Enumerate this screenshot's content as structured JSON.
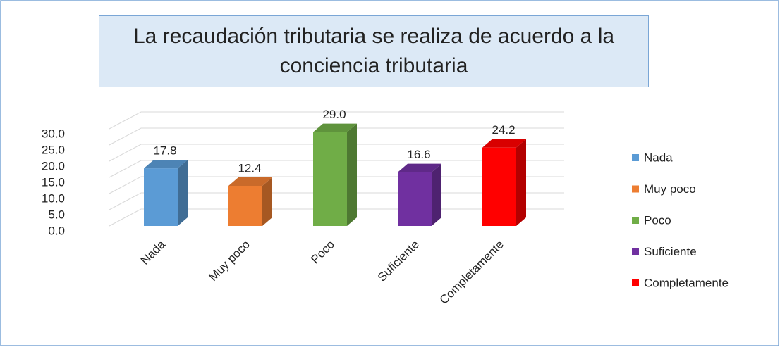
{
  "chart_data": {
    "type": "bar3d",
    "title": "La recaudación tributaria se realiza de acuerdo a la conciencia tributaria",
    "categories": [
      "Nada",
      "Muy poco",
      "Poco",
      "Suficiente",
      "Completamente"
    ],
    "values": [
      17.8,
      12.4,
      29.0,
      16.6,
      24.2
    ],
    "value_labels": [
      "17.8",
      "12.4",
      "29.0",
      "16.6",
      "24.2"
    ],
    "colors": [
      "#5b9bd5",
      "#ed7d31",
      "#70ad47",
      "#7030a0",
      "#ff0000"
    ],
    "ylim": [
      0,
      30
    ],
    "yticks": [
      {
        "value": 0,
        "label": "0.0"
      },
      {
        "value": 5,
        "label": "5.0"
      },
      {
        "value": 10,
        "label": "10.0"
      },
      {
        "value": 15,
        "label": "15.0"
      },
      {
        "value": 20,
        "label": "20.0"
      },
      {
        "value": 25,
        "label": "25.0"
      },
      {
        "value": 30,
        "label": "30.0"
      }
    ],
    "grid": true,
    "legend": "right"
  }
}
